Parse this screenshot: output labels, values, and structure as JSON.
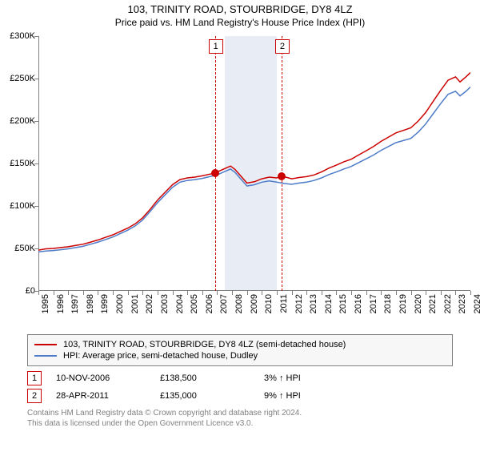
{
  "title": "103, TRINITY ROAD, STOURBRIDGE, DY8 4LZ",
  "subtitle": "Price paid vs. HM Land Registry's House Price Index (HPI)",
  "chart": {
    "type": "line",
    "background_color": "#ffffff",
    "shade_color": "#e8ecf4",
    "x_min": 1995,
    "x_max": 2024,
    "x_ticks": [
      1995,
      1996,
      1997,
      1998,
      1999,
      2000,
      2001,
      2002,
      2003,
      2004,
      2005,
      2006,
      2007,
      2008,
      2009,
      2010,
      2011,
      2012,
      2013,
      2014,
      2015,
      2016,
      2017,
      2018,
      2019,
      2020,
      2021,
      2022,
      2023,
      2024
    ],
    "y_min": 0,
    "y_max": 300000,
    "y_ticks": [
      0,
      50000,
      100000,
      150000,
      200000,
      250000,
      300000
    ],
    "y_tick_labels": [
      "£0",
      "£50K",
      "£100K",
      "£150K",
      "£200K",
      "£250K",
      "£300K"
    ],
    "shade_start": 2007.5,
    "shade_end": 2011,
    "series": [
      {
        "name": "103, TRINITY ROAD, STOURBRIDGE, DY8 4LZ (semi-detached house)",
        "color": "#cc0000",
        "width": 1.5,
        "data": []
      },
      {
        "name": "HPI: Average price, semi-detached house, Dudley",
        "color": "#4e7cc9",
        "width": 1.5,
        "data": []
      }
    ],
    "markers": [
      {
        "label": "1",
        "x": 2006.85,
        "y": 138500
      },
      {
        "label": "2",
        "x": 2011.32,
        "y": 135000
      }
    ],
    "label_fontsize": 11,
    "title_fontsize": 13
  },
  "legend": {
    "items": [
      {
        "color": "#cc0000",
        "label": "103, TRINITY ROAD, STOURBRIDGE, DY8 4LZ (semi-detached house)"
      },
      {
        "color": "#4e7cc9",
        "label": "HPI: Average price, semi-detached house, Dudley"
      }
    ]
  },
  "annotations": [
    {
      "num": "1",
      "date": "10-NOV-2006",
      "price": "£138,500",
      "diff": "3% ↑ HPI"
    },
    {
      "num": "2",
      "date": "28-APR-2011",
      "price": "£135,000",
      "diff": "9% ↑ HPI"
    }
  ],
  "footer": {
    "line1": "Contains HM Land Registry data © Crown copyright and database right 2024.",
    "line2": "This data is licensed under the Open Government Licence v3.0."
  },
  "series_red": [
    [
      1995,
      48000
    ],
    [
      1995.5,
      49500
    ],
    [
      1996,
      50000
    ],
    [
      1996.5,
      51000
    ],
    [
      1997,
      52000
    ],
    [
      1997.5,
      53500
    ],
    [
      1998,
      55000
    ],
    [
      1998.5,
      57500
    ],
    [
      1999,
      60000
    ],
    [
      1999.5,
      63000
    ],
    [
      2000,
      66000
    ],
    [
      2000.5,
      70000
    ],
    [
      2001,
      74000
    ],
    [
      2001.5,
      79000
    ],
    [
      2002,
      86000
    ],
    [
      2002.5,
      96000
    ],
    [
      2003,
      107000
    ],
    [
      2003.5,
      116000
    ],
    [
      2004,
      125000
    ],
    [
      2004.5,
      131000
    ],
    [
      2005,
      133000
    ],
    [
      2005.5,
      134000
    ],
    [
      2006,
      135500
    ],
    [
      2006.5,
      137500
    ],
    [
      2006.85,
      138500
    ],
    [
      2007,
      140000
    ],
    [
      2007.5,
      144000
    ],
    [
      2007.9,
      147000
    ],
    [
      2008.2,
      143000
    ],
    [
      2008.6,
      135000
    ],
    [
      2009,
      127000
    ],
    [
      2009.5,
      128500
    ],
    [
      2010,
      132000
    ],
    [
      2010.5,
      134000
    ],
    [
      2011,
      133000
    ],
    [
      2011.32,
      135000
    ],
    [
      2011.7,
      133500
    ],
    [
      2012,
      132000
    ],
    [
      2012.5,
      133500
    ],
    [
      2013,
      134500
    ],
    [
      2013.5,
      136500
    ],
    [
      2014,
      140000
    ],
    [
      2014.5,
      144500
    ],
    [
      2015,
      148000
    ],
    [
      2015.5,
      152000
    ],
    [
      2016,
      155000
    ],
    [
      2016.5,
      160000
    ],
    [
      2017,
      165000
    ],
    [
      2017.5,
      170000
    ],
    [
      2018,
      176000
    ],
    [
      2018.5,
      181000
    ],
    [
      2019,
      186000
    ],
    [
      2019.5,
      189000
    ],
    [
      2020,
      192000
    ],
    [
      2020.5,
      200000
    ],
    [
      2021,
      210000
    ],
    [
      2021.5,
      223000
    ],
    [
      2022,
      236000
    ],
    [
      2022.5,
      248000
    ],
    [
      2023,
      252000
    ],
    [
      2023.3,
      246000
    ],
    [
      2023.7,
      252000
    ],
    [
      2024,
      257000
    ]
  ],
  "series_blue": [
    [
      1995,
      46000
    ],
    [
      1995.5,
      47000
    ],
    [
      1996,
      47500
    ],
    [
      1996.5,
      48500
    ],
    [
      1997,
      49500
    ],
    [
      1997.5,
      51000
    ],
    [
      1998,
      52500
    ],
    [
      1998.5,
      55000
    ],
    [
      1999,
      57500
    ],
    [
      1999.5,
      60500
    ],
    [
      2000,
      63500
    ],
    [
      2000.5,
      67500
    ],
    [
      2001,
      71500
    ],
    [
      2001.5,
      76500
    ],
    [
      2002,
      83500
    ],
    [
      2002.5,
      93500
    ],
    [
      2003,
      104000
    ],
    [
      2003.5,
      113000
    ],
    [
      2004,
      122000
    ],
    [
      2004.5,
      128000
    ],
    [
      2005,
      130000
    ],
    [
      2005.5,
      131000
    ],
    [
      2006,
      132500
    ],
    [
      2006.5,
      134500
    ],
    [
      2007,
      136500
    ],
    [
      2007.5,
      140500
    ],
    [
      2007.9,
      143500
    ],
    [
      2008.2,
      139500
    ],
    [
      2008.6,
      131500
    ],
    [
      2009,
      123500
    ],
    [
      2009.5,
      125000
    ],
    [
      2010,
      128000
    ],
    [
      2010.5,
      129500
    ],
    [
      2011,
      128000
    ],
    [
      2011.5,
      126500
    ],
    [
      2012,
      125500
    ],
    [
      2012.5,
      127000
    ],
    [
      2013,
      128000
    ],
    [
      2013.5,
      130000
    ],
    [
      2014,
      133000
    ],
    [
      2014.5,
      137000
    ],
    [
      2015,
      140000
    ],
    [
      2015.5,
      143500
    ],
    [
      2016,
      146500
    ],
    [
      2016.5,
      151000
    ],
    [
      2017,
      155500
    ],
    [
      2017.5,
      160000
    ],
    [
      2018,
      165500
    ],
    [
      2018.5,
      170000
    ],
    [
      2019,
      174500
    ],
    [
      2019.5,
      177000
    ],
    [
      2020,
      179500
    ],
    [
      2020.5,
      187000
    ],
    [
      2021,
      196500
    ],
    [
      2021.5,
      208500
    ],
    [
      2022,
      220500
    ],
    [
      2022.5,
      231500
    ],
    [
      2023,
      235000
    ],
    [
      2023.3,
      229500
    ],
    [
      2023.7,
      235000
    ],
    [
      2024,
      240000
    ]
  ]
}
